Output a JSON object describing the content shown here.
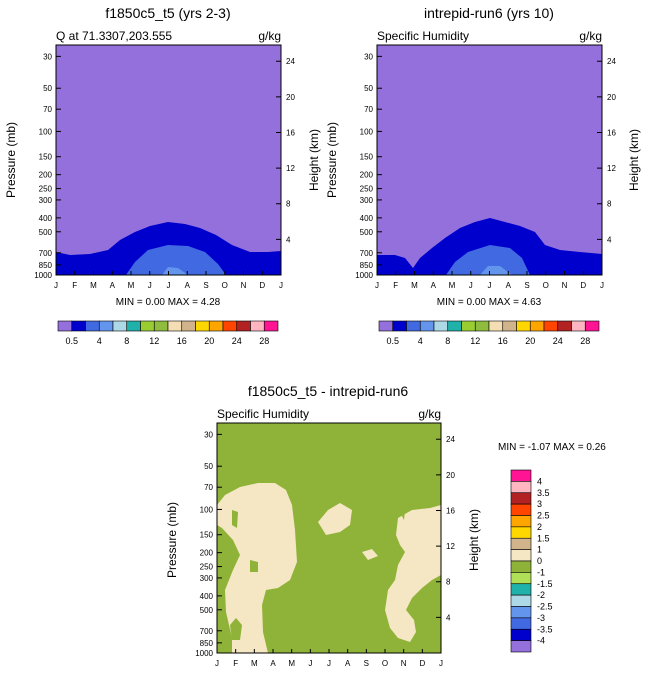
{
  "chart_data": [
    {
      "type": "contour",
      "title": "f1850c5_t5 (yrs 2-3)",
      "left_label": "Q at 71.3307,203.555",
      "right_label": "g/kg",
      "ylabel": "Pressure (mb)",
      "ylabel_right": "Height (km)",
      "months": [
        "J",
        "F",
        "M",
        "A",
        "M",
        "J",
        "J",
        "A",
        "S",
        "O",
        "N",
        "D",
        "J"
      ],
      "pressure_ticks": [
        "30",
        "50",
        "70",
        "100",
        "150",
        "200",
        "250",
        "300",
        "400",
        "500",
        "700",
        "850",
        "1000"
      ],
      "height_ticks": [
        "24",
        "20",
        "16",
        "12",
        "8",
        "4"
      ],
      "stats": "MIN =   0.00 MAX =   4.28",
      "colorbar_labels": [
        "0.5",
        "4",
        "8",
        "12",
        "16",
        "20",
        "24",
        "28"
      ],
      "max_value": 4.28
    },
    {
      "type": "contour",
      "title": "intrepid-run6 (yrs 10)",
      "left_label": "Specific Humidity",
      "right_label": "g/kg",
      "ylabel": "Pressure (mb)",
      "ylabel_right": "Height (km)",
      "months": [
        "J",
        "F",
        "M",
        "A",
        "M",
        "J",
        "J",
        "A",
        "S",
        "O",
        "N",
        "D",
        "J"
      ],
      "pressure_ticks": [
        "30",
        "50",
        "70",
        "100",
        "150",
        "200",
        "250",
        "300",
        "400",
        "500",
        "700",
        "850",
        "1000"
      ],
      "height_ticks": [
        "24",
        "20",
        "16",
        "12",
        "8",
        "4"
      ],
      "stats": "MIN =   0.00 MAX =   4.63",
      "colorbar_labels": [
        "0.5",
        "4",
        "8",
        "12",
        "16",
        "20",
        "24",
        "28"
      ],
      "max_value": 4.63
    },
    {
      "type": "contour",
      "title": "f1850c5_t5 - intrepid-run6",
      "left_label": "Specific Humidity",
      "right_label": "g/kg",
      "ylabel": "Pressure (mb)",
      "ylabel_right": "Height (km)",
      "months": [
        "J",
        "F",
        "M",
        "A",
        "M",
        "J",
        "J",
        "A",
        "S",
        "O",
        "N",
        "D",
        "J"
      ],
      "pressure_ticks": [
        "30",
        "50",
        "70",
        "100",
        "150",
        "200",
        "250",
        "300",
        "400",
        "500",
        "700",
        "850",
        "1000"
      ],
      "height_ticks": [
        "24",
        "20",
        "16",
        "12",
        "8",
        "4"
      ],
      "stats": "MIN =  -1.07 MAX =   0.26",
      "colorbar_labels": [
        "4",
        "3.5",
        "3",
        "2.5",
        "2",
        "1.5",
        "1",
        "0",
        "-1",
        "-1.5",
        "-2",
        "-2.5",
        "-3",
        "-3.5",
        "-4"
      ]
    }
  ],
  "palettes": {
    "absolute": [
      "#9370db",
      "#0000cd",
      "#4169e1",
      "#6495ed",
      "#add8e6",
      "#20b2aa",
      "#9acd32",
      "#8fbc3f",
      "#f5deb3",
      "#d2b48c",
      "#ffd700",
      "#ffa500",
      "#ff4500",
      "#b22222",
      "#ffb6c1",
      "#ff1493"
    ],
    "difference": [
      "#ff1493",
      "#ffb6c1",
      "#b22222",
      "#ff4500",
      "#ffa500",
      "#ffd700",
      "#d2b48c",
      "#f5e6c4",
      "#8fb339",
      "#b0e057",
      "#20b2aa",
      "#add8e6",
      "#6495ed",
      "#4169e1",
      "#0000cd",
      "#9370db"
    ]
  }
}
